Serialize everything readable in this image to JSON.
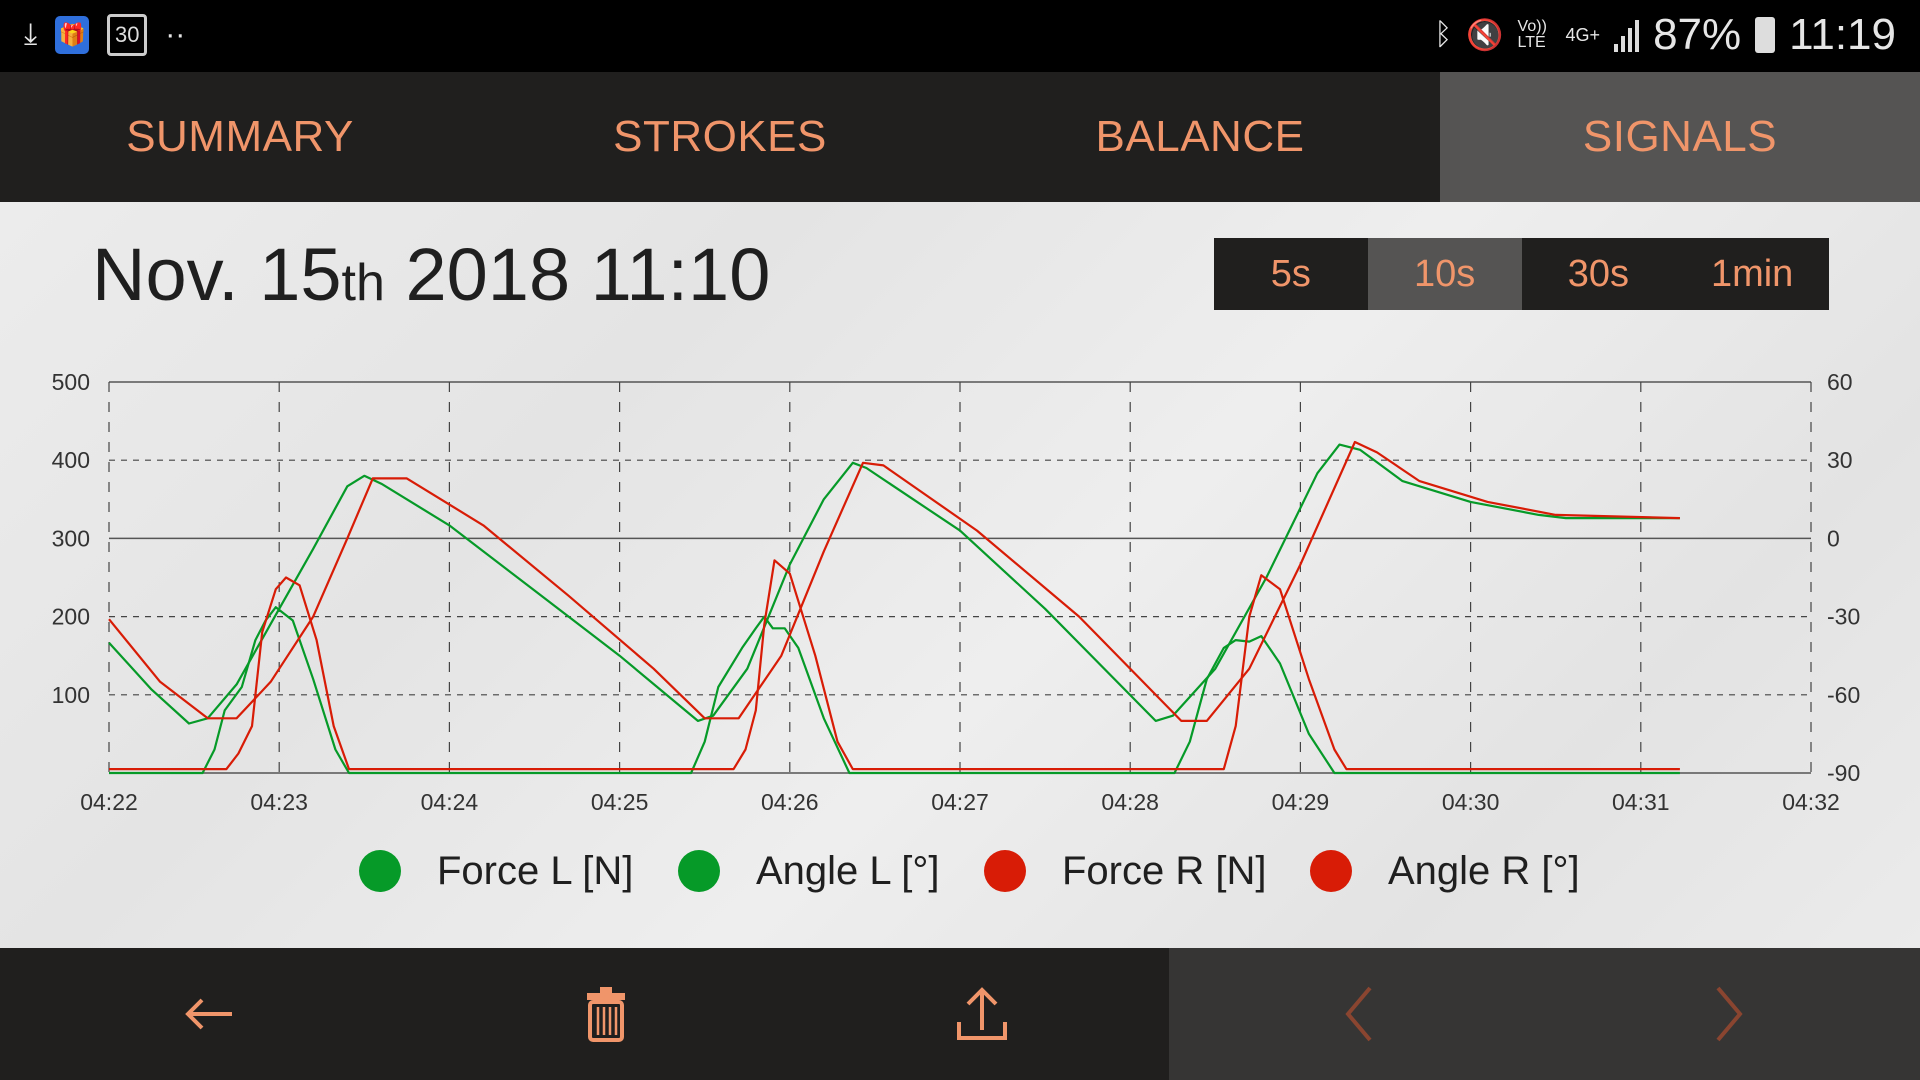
{
  "status_bar": {
    "left_icons": [
      "download-icon",
      "gift-icon",
      "calendar-icon",
      "more-dots-icon"
    ],
    "calendar_day": "30",
    "right_icons": [
      "bluetooth-icon",
      "mute-icon",
      "volte-icon",
      "4g-plus-icon",
      "signal-icon",
      "battery-icon"
    ],
    "volte_label": "Vo)) LTE",
    "network_label": "4G+",
    "battery": "87%",
    "time": "11:19"
  },
  "tabs": [
    {
      "label": "SUMMARY",
      "active": false
    },
    {
      "label": "STROKES",
      "active": false
    },
    {
      "label": "BALANCE",
      "active": false
    },
    {
      "label": "SIGNALS",
      "active": true
    }
  ],
  "session": {
    "title_prefix": "Nov. 15",
    "title_suffix": "th",
    "title_rest": " 2018 11:10"
  },
  "ranges": [
    {
      "label": "5s",
      "active": false
    },
    {
      "label": "10s",
      "active": true
    },
    {
      "label": "30s",
      "active": false
    },
    {
      "label": "1min",
      "active": false
    }
  ],
  "colors": {
    "accent": "#f0956a",
    "left": "#069a28",
    "right": "#d81c06",
    "bar": "#201f1e",
    "active": "#555453"
  },
  "chart_data": {
    "type": "line",
    "xlim": [
      "04:22",
      "04:32"
    ],
    "x_ticks": [
      "04:22",
      "04:23",
      "04:24",
      "04:25",
      "04:26",
      "04:27",
      "04:28",
      "04:29",
      "04:30",
      "04:31",
      "04:32"
    ],
    "ylim_left": [
      0,
      500
    ],
    "y_ticks_left": [
      100,
      200,
      300,
      400,
      500
    ],
    "ylim_right": [
      -90,
      60
    ],
    "y_ticks_right": [
      60,
      30,
      0,
      -30,
      -60,
      -90
    ],
    "grid": true,
    "legend_position": "bottom",
    "series": [
      {
        "name": "Force L [N]",
        "axis": "left",
        "color": "#069a28",
        "points": [
          [
            "04:22.00",
            0
          ],
          [
            "04:22.55",
            0
          ],
          [
            "04:22.62",
            30
          ],
          [
            "04:22.68",
            80
          ],
          [
            "04:22.78",
            110
          ],
          [
            "04:22.86",
            170
          ],
          [
            "04:22.92",
            195
          ],
          [
            "04:22.98",
            212
          ],
          [
            "04:23.08",
            195
          ],
          [
            "04:23.20",
            120
          ],
          [
            "04:23.33",
            30
          ],
          [
            "04:23.41",
            0
          ],
          [
            "04:25.42",
            0
          ],
          [
            "04:25.50",
            40
          ],
          [
            "04:25.58",
            110
          ],
          [
            "04:25.72",
            160
          ],
          [
            "04:25.80",
            185
          ],
          [
            "04:25.85",
            200
          ],
          [
            "04:25.90",
            185
          ],
          [
            "04:25.97",
            185
          ],
          [
            "04:26.05",
            160
          ],
          [
            "04:26.20",
            70
          ],
          [
            "04:26.35",
            0
          ],
          [
            "04:28.26",
            0
          ],
          [
            "04:28.35",
            40
          ],
          [
            "04:28.45",
            120
          ],
          [
            "04:28.55",
            160
          ],
          [
            "04:28.62",
            170
          ],
          [
            "04:28.70",
            168
          ],
          [
            "04:28.77",
            175
          ],
          [
            "04:28.88",
            140
          ],
          [
            "04:29.05",
            50
          ],
          [
            "04:29.20",
            0
          ],
          [
            "04:31.23",
            0
          ]
        ]
      },
      {
        "name": "Angle L [°]",
        "axis": "right",
        "color": "#069a28",
        "points": [
          [
            "04:22.00",
            -40
          ],
          [
            "04:22.25",
            -58
          ],
          [
            "04:22.47",
            -71
          ],
          [
            "04:22.58",
            -69
          ],
          [
            "04:22.75",
            -56
          ],
          [
            "04:23.00",
            -27
          ],
          [
            "04:23.20",
            -4
          ],
          [
            "04:23.40",
            20
          ],
          [
            "04:23.50",
            24
          ],
          [
            "04:23.60",
            21
          ],
          [
            "04:24.00",
            5
          ],
          [
            "04:24.50",
            -20
          ],
          [
            "04:25.00",
            -45
          ],
          [
            "04:25.46",
            -70
          ],
          [
            "04:25.55",
            -68
          ],
          [
            "04:25.75",
            -50
          ],
          [
            "04:26.00",
            -10
          ],
          [
            "04:26.20",
            15
          ],
          [
            "04:26.37",
            29
          ],
          [
            "04:26.45",
            27
          ],
          [
            "04:27.00",
            3
          ],
          [
            "04:27.50",
            -27
          ],
          [
            "04:28.15",
            -70
          ],
          [
            "04:28.25",
            -68
          ],
          [
            "04:28.50",
            -50
          ],
          [
            "04:28.80",
            -15
          ],
          [
            "04:29.10",
            25
          ],
          [
            "04:29.23",
            36
          ],
          [
            "04:29.35",
            34
          ],
          [
            "04:29.60",
            22
          ],
          [
            "04:30.00",
            14
          ],
          [
            "04:30.40",
            9
          ],
          [
            "04:30.56",
            7.8
          ],
          [
            "04:31.23",
            7.8
          ]
        ]
      },
      {
        "name": "Force R [N]",
        "axis": "left",
        "color": "#d81c06",
        "points": [
          [
            "04:22.00",
            5
          ],
          [
            "04:22.69",
            5
          ],
          [
            "04:22.76",
            25
          ],
          [
            "04:22.84",
            60
          ],
          [
            "04:22.90",
            180
          ],
          [
            "04:22.98",
            235
          ],
          [
            "04:23.04",
            250
          ],
          [
            "04:23.12",
            240
          ],
          [
            "04:23.22",
            170
          ],
          [
            "04:23.32",
            60
          ],
          [
            "04:23.41",
            5
          ],
          [
            "04:25.67",
            5
          ],
          [
            "04:25.74",
            30
          ],
          [
            "04:25.80",
            80
          ],
          [
            "04:25.85",
            190
          ],
          [
            "04:25.91",
            272
          ],
          [
            "04:26.00",
            255
          ],
          [
            "04:26.15",
            150
          ],
          [
            "04:26.28",
            40
          ],
          [
            "04:26.37",
            5
          ],
          [
            "04:28.55",
            5
          ],
          [
            "04:28.62",
            60
          ],
          [
            "04:28.70",
            200
          ],
          [
            "04:28.77",
            253
          ],
          [
            "04:28.88",
            235
          ],
          [
            "04:29.05",
            120
          ],
          [
            "04:29.20",
            30
          ],
          [
            "04:29.27",
            5
          ],
          [
            "04:31.23",
            5
          ]
        ]
      },
      {
        "name": "Angle R [°]",
        "axis": "right",
        "color": "#d81c06",
        "points": [
          [
            "04:22.00",
            -31
          ],
          [
            "04:22.30",
            -55
          ],
          [
            "04:22.58",
            -69
          ],
          [
            "04:22.75",
            -69
          ],
          [
            "04:22.95",
            -55
          ],
          [
            "04:23.20",
            -30
          ],
          [
            "04:23.40",
            0
          ],
          [
            "04:23.55",
            23
          ],
          [
            "04:23.75",
            23
          ],
          [
            "04:24.20",
            5
          ],
          [
            "04:24.70",
            -22
          ],
          [
            "04:25.20",
            -50
          ],
          [
            "04:25.50",
            -69
          ],
          [
            "04:25.70",
            -69
          ],
          [
            "04:25.95",
            -45
          ],
          [
            "04:26.20",
            -5
          ],
          [
            "04:26.43",
            29
          ],
          [
            "04:26.55",
            28
          ],
          [
            "04:27.10",
            3
          ],
          [
            "04:27.70",
            -30
          ],
          [
            "04:28.30",
            -70
          ],
          [
            "04:28.45",
            -70
          ],
          [
            "04:28.70",
            -50
          ],
          [
            "04:29.00",
            -10
          ],
          [
            "04:29.32",
            37
          ],
          [
            "04:29.45",
            33
          ],
          [
            "04:29.70",
            22
          ],
          [
            "04:30.10",
            14
          ],
          [
            "04:30.50",
            9
          ],
          [
            "04:31.23",
            7.8
          ]
        ]
      }
    ]
  },
  "bottom_bar": {
    "icons": [
      "back-arrow-icon",
      "trash-icon",
      "upload-icon",
      "chevron-left-icon",
      "chevron-right-icon"
    ]
  }
}
